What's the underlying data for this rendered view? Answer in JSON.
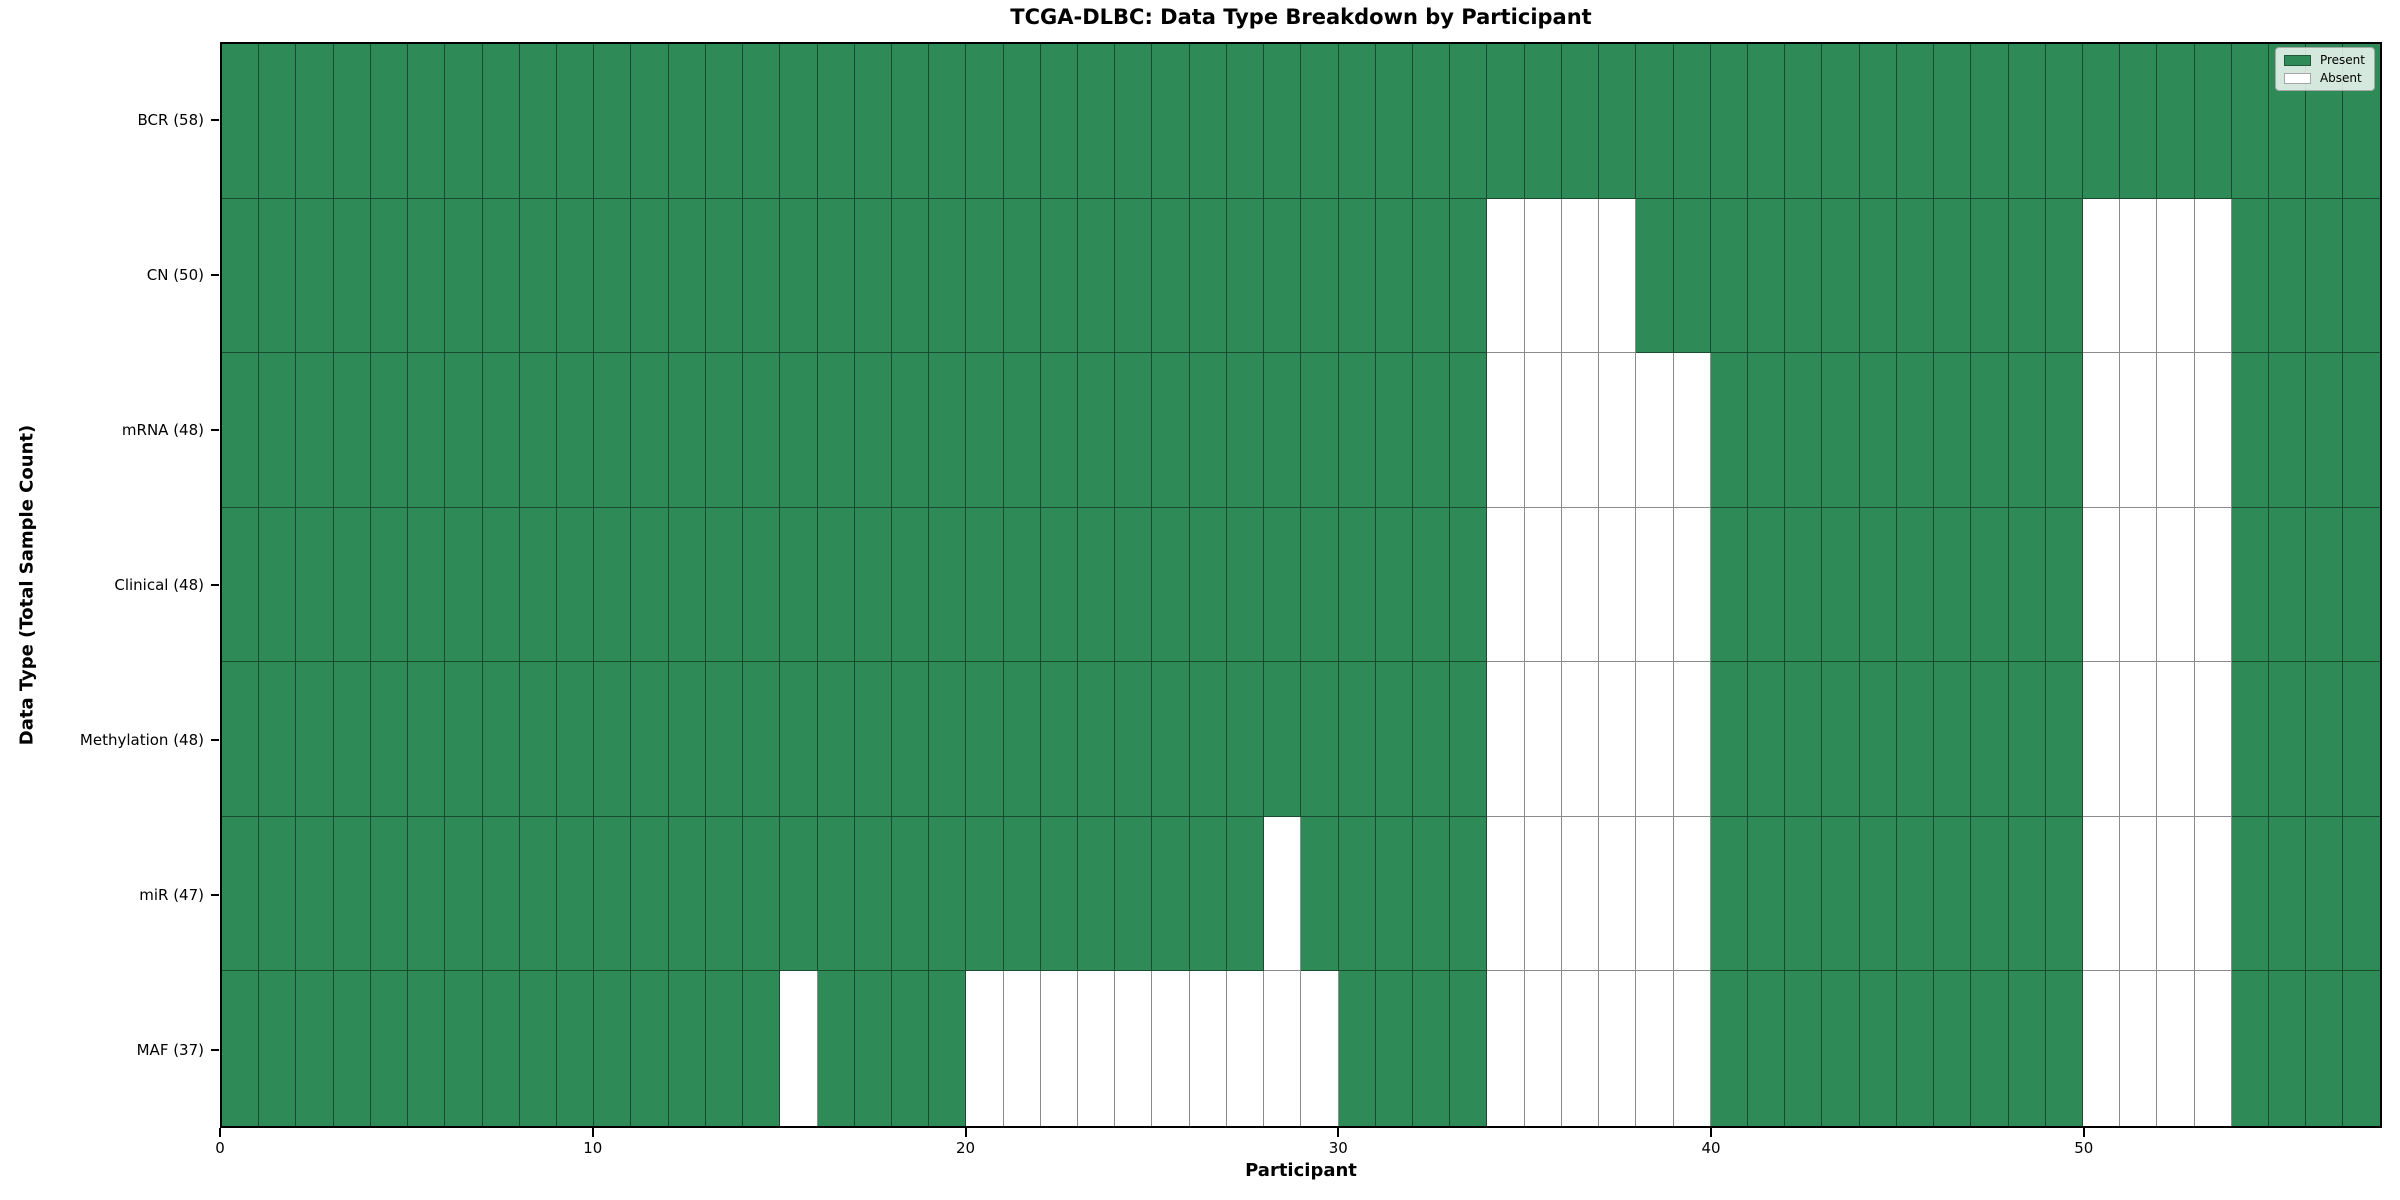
{
  "chart_data": {
    "type": "heatmap",
    "title": "TCGA-DLBC: Data Type Breakdown by Participant",
    "xlabel": "Participant",
    "ylabel": "Data Type (Total Sample Count)",
    "x_ticks": [
      0,
      10,
      20,
      30,
      40,
      50
    ],
    "x_range": [
      0,
      58
    ],
    "n_participants": 58,
    "grid": true,
    "legend": {
      "position": "upper right",
      "entries": [
        {
          "label": "Present",
          "color": "#2e8b57"
        },
        {
          "label": "Absent",
          "color": "#ffffff"
        }
      ]
    },
    "rows": [
      {
        "label": "BCR (58)",
        "data_type": "BCR",
        "total_samples": 58,
        "absent_participants": []
      },
      {
        "label": "CN (50)",
        "data_type": "CN",
        "total_samples": 50,
        "absent_participants": [
          34,
          35,
          36,
          37,
          50,
          51,
          52,
          53
        ]
      },
      {
        "label": "mRNA (48)",
        "data_type": "mRNA",
        "total_samples": 48,
        "absent_participants": [
          34,
          35,
          36,
          37,
          38,
          39,
          50,
          51,
          52,
          53
        ]
      },
      {
        "label": "Clinical (48)",
        "data_type": "Clinical",
        "total_samples": 48,
        "absent_participants": [
          34,
          35,
          36,
          37,
          38,
          39,
          50,
          51,
          52,
          53
        ]
      },
      {
        "label": "Methylation (48)",
        "data_type": "Methylation",
        "total_samples": 48,
        "absent_participants": [
          34,
          35,
          36,
          37,
          38,
          39,
          50,
          51,
          52,
          53
        ]
      },
      {
        "label": "miR (47)",
        "data_type": "miR",
        "total_samples": 47,
        "absent_participants": [
          28,
          34,
          35,
          36,
          37,
          38,
          39,
          50,
          51,
          52,
          53
        ]
      },
      {
        "label": "MAF (37)",
        "data_type": "MAF",
        "total_samples": 37,
        "absent_participants": [
          15,
          20,
          21,
          22,
          23,
          24,
          25,
          26,
          27,
          28,
          29,
          34,
          35,
          36,
          37,
          38,
          39,
          50,
          51,
          52,
          53
        ]
      }
    ]
  },
  "colors": {
    "present": "#2e8b57",
    "absent": "#ffffff",
    "grid_line": "rgba(0,0,0,0.45)",
    "axis": "#000000"
  }
}
